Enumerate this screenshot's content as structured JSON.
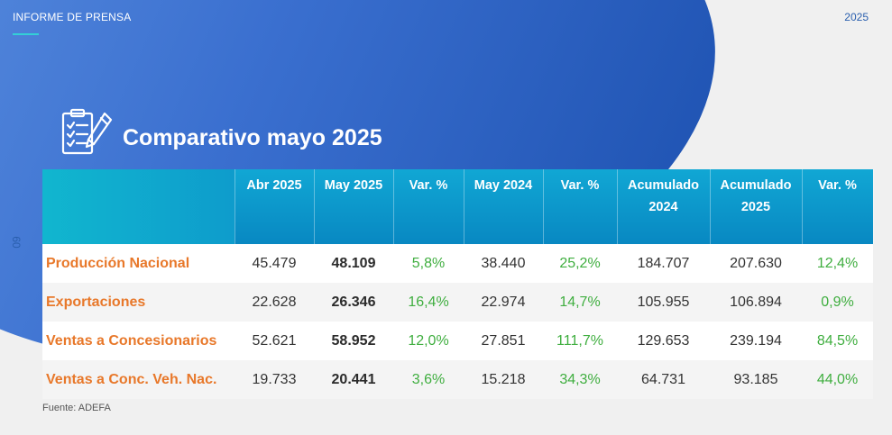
{
  "header": {
    "label": "INFORME DE PRENSA",
    "year": "2025",
    "side_number": "09"
  },
  "title": "Comparativo mayo 2025",
  "icon": "clipboard-checklist-pencil-icon",
  "colors": {
    "header_bg": "#0888c2",
    "row_label": "#e8782a",
    "variation": "#3fae3f",
    "accent": "#33d0d6"
  },
  "table": {
    "columns": [
      {
        "line1": "Abr 2025",
        "line2": ""
      },
      {
        "line1": "May 2025",
        "line2": ""
      },
      {
        "line1": "Var. %",
        "line2": ""
      },
      {
        "line1": "May 2024",
        "line2": ""
      },
      {
        "line1": "Var. %",
        "line2": ""
      },
      {
        "line1": "Acumulado",
        "line2": "2024"
      },
      {
        "line1": "Acumulado",
        "line2": "2025"
      },
      {
        "line1": "Var. %",
        "line2": ""
      }
    ],
    "rows": [
      {
        "label": "Producción Nacional",
        "values": [
          "45.479",
          "48.109",
          "5,8%",
          "38.440",
          "25,2%",
          "184.707",
          "207.630",
          "12,4%"
        ]
      },
      {
        "label": "Exportaciones",
        "values": [
          "22.628",
          "26.346",
          "16,4%",
          "22.974",
          "14,7%",
          "105.955",
          "106.894",
          "0,9%"
        ]
      },
      {
        "label": "Ventas a Concesionarios",
        "values": [
          "52.621",
          "58.952",
          "12,0%",
          "27.851",
          "111,7%",
          "129.653",
          "239.194",
          "84,5%"
        ]
      },
      {
        "label": "Ventas a Conc. Veh. Nac.",
        "values": [
          "19.733",
          "20.441",
          "3,6%",
          "15.218",
          "34,3%",
          "64.731",
          "93.185",
          "44,0%"
        ]
      }
    ]
  },
  "source": "Fuente: ADEFA"
}
